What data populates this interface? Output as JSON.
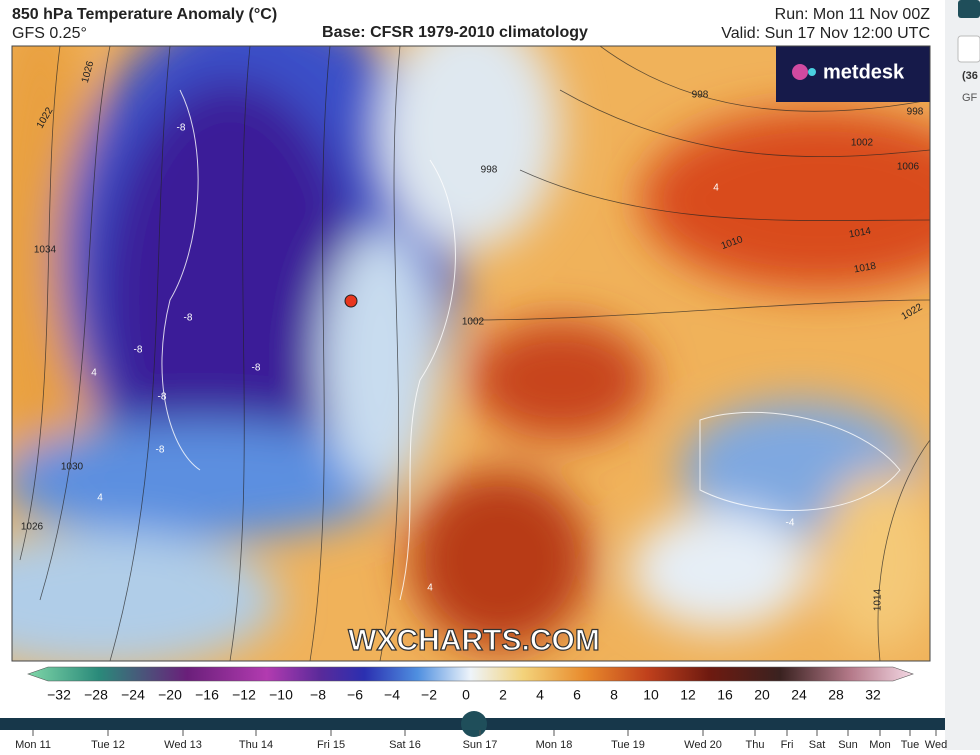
{
  "header": {
    "title": "850 hPa Temperature Anomaly (°C)",
    "model": "GFS 0.25°",
    "base": "Base: CFSR 1979-2010 climatology",
    "run": "Run: Mon 11 Nov 00Z",
    "valid": "Valid: Sun 17 Nov 12:00 UTC"
  },
  "map": {
    "logo": "metdesk",
    "watermark": "WXCHARTS.COM",
    "isobar_labels": [
      "1022",
      "1026",
      "1034",
      "1030",
      "1026",
      "998",
      "1002",
      "998",
      "998",
      "1002",
      "1006",
      "1010",
      "1014",
      "1018",
      "1022",
      "1014"
    ],
    "anomaly_labels": [
      "-8",
      "-8",
      "-8",
      "-8",
      "-8",
      "-8",
      "-4",
      "4",
      "4",
      "4",
      "4"
    ]
  },
  "colorbar": {
    "labels": [
      "−32",
      "−28",
      "−24",
      "−20",
      "−16",
      "−12",
      "−10",
      "−8",
      "−6",
      "−4",
      "−2",
      "0",
      "2",
      "4",
      "6",
      "8",
      "10",
      "12",
      "16",
      "20",
      "24",
      "28",
      "32"
    ]
  },
  "timeline": {
    "days": [
      "Mon 11",
      "Tue 12",
      "Wed 13",
      "Thu 14",
      "Fri 15",
      "Sat 16",
      "Sun 17",
      "Mon 18",
      "Tue 19",
      "Wed 20",
      "Thu",
      "Fri",
      "Sat",
      "Sun",
      "Mon",
      "Tue",
      "Wed"
    ]
  },
  "side_panel": {
    "texts": [
      "(36",
      "GF"
    ]
  }
}
